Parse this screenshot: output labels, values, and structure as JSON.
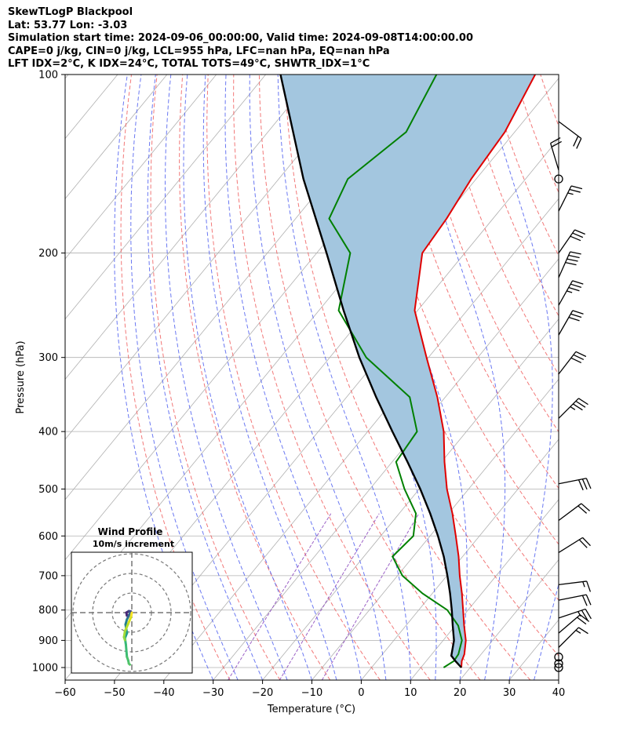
{
  "header": {
    "line1": "SkewTLogP Blackpool",
    "line2": "Lat: 53.77   Lon: -3.03",
    "line3": "Simulation start time: 2024-09-06_00:00:00, Valid time: 2024-09-08T14:00:00.00",
    "line4": "CAPE=0 j/kg, CIN=0 j/kg, LCL=955 hPa, LFC=nan hPa, EQ=nan hPa",
    "line5": "LFT IDX=2°C, K IDX=24°C, TOTAL TOTS=49°C, SHWTR_IDX=1°C"
  },
  "chart_data": {
    "type": "skew-t log-p",
    "xlabel": "Temperature (°C)",
    "ylabel": "Pressure (hPa)",
    "xlim": [
      -60,
      40
    ],
    "ylim": [
      1050,
      100
    ],
    "x_ticks": [
      "−60",
      "−50",
      "−40",
      "−30",
      "−20",
      "−10",
      "0",
      "10",
      "20",
      "30",
      "40"
    ],
    "y_ticks": [
      "100",
      "200",
      "300",
      "400",
      "500",
      "600",
      "700",
      "800",
      "900",
      "1000"
    ],
    "grid": true,
    "colors": {
      "temperature": "#e00000",
      "dewpoint": "#008000",
      "parcel": "#000000",
      "cape_fill": "#a3c6df",
      "dry_adiabats": "#f06060",
      "moist_adiabats": "#5060f0",
      "mixing_ratio": "#9050c0",
      "isotherms": "#b0b0b0"
    },
    "temperature_profile": [
      {
        "p": 1000,
        "t": 18.2
      },
      {
        "p": 975,
        "t": 17.2
      },
      {
        "p": 950,
        "t": 16.6
      },
      {
        "p": 900,
        "t": 14.6
      },
      {
        "p": 850,
        "t": 11.8
      },
      {
        "p": 800,
        "t": 9.0
      },
      {
        "p": 750,
        "t": 6.0
      },
      {
        "p": 700,
        "t": 2.6
      },
      {
        "p": 650,
        "t": -0.8
      },
      {
        "p": 600,
        "t": -4.8
      },
      {
        "p": 550,
        "t": -9.2
      },
      {
        "p": 500,
        "t": -14.4
      },
      {
        "p": 450,
        "t": -19.4
      },
      {
        "p": 400,
        "t": -24.6
      },
      {
        "p": 350,
        "t": -31.6
      },
      {
        "p": 300,
        "t": -40.4
      },
      {
        "p": 250,
        "t": -50.6
      },
      {
        "p": 200,
        "t": -58.6
      },
      {
        "p": 175,
        "t": -59.4
      },
      {
        "p": 150,
        "t": -61.0
      },
      {
        "p": 125,
        "t": -62.0
      },
      {
        "p": 100,
        "t": -65.4
      }
    ],
    "dewpoint_profile": [
      {
        "p": 1000,
        "t": 14.6
      },
      {
        "p": 975,
        "t": 15.6
      },
      {
        "p": 950,
        "t": 15.4
      },
      {
        "p": 900,
        "t": 13.8
      },
      {
        "p": 850,
        "t": 10.6
      },
      {
        "p": 800,
        "t": 5.8
      },
      {
        "p": 750,
        "t": -2.0
      },
      {
        "p": 700,
        "t": -9.0
      },
      {
        "p": 650,
        "t": -14.2
      },
      {
        "p": 600,
        "t": -13.4
      },
      {
        "p": 550,
        "t": -16.6
      },
      {
        "p": 500,
        "t": -23.0
      },
      {
        "p": 450,
        "t": -29.2
      },
      {
        "p": 400,
        "t": -30.0
      },
      {
        "p": 350,
        "t": -37.2
      },
      {
        "p": 300,
        "t": -52.6
      },
      {
        "p": 250,
        "t": -66.0
      },
      {
        "p": 200,
        "t": -73.2
      },
      {
        "p": 175,
        "t": -83.2
      },
      {
        "p": 150,
        "t": -86.0
      },
      {
        "p": 125,
        "t": -82.0
      },
      {
        "p": 100,
        "t": -85.4
      }
    ],
    "parcel_profile": [
      {
        "p": 1000,
        "t": 18.2
      },
      {
        "p": 975,
        "t": 15.9
      },
      {
        "p": 955,
        "t": 14.2
      },
      {
        "p": 900,
        "t": 12.2
      },
      {
        "p": 850,
        "t": 9.5
      },
      {
        "p": 800,
        "t": 6.7
      },
      {
        "p": 750,
        "t": 3.6
      },
      {
        "p": 700,
        "t": 0.1
      },
      {
        "p": 650,
        "t": -3.8
      },
      {
        "p": 600,
        "t": -8.4
      },
      {
        "p": 550,
        "t": -13.7
      },
      {
        "p": 500,
        "t": -19.8
      },
      {
        "p": 450,
        "t": -26.9
      },
      {
        "p": 400,
        "t": -35.0
      },
      {
        "p": 350,
        "t": -44.0
      },
      {
        "p": 300,
        "t": -54.0
      },
      {
        "p": 250,
        "t": -65.0
      },
      {
        "p": 200,
        "t": -78.0
      },
      {
        "p": 150,
        "t": -95.0
      },
      {
        "p": 100,
        "t": -117.0
      }
    ],
    "wind_barbs": [
      {
        "p": 1000,
        "u": 0,
        "v": 0
      },
      {
        "p": 985,
        "u": 0,
        "v": 0
      },
      {
        "p": 960,
        "u": 0,
        "v": 0
      },
      {
        "p": 925,
        "u": -6,
        "v": -6
      },
      {
        "p": 875,
        "u": -7,
        "v": -6
      },
      {
        "p": 825,
        "u": -12,
        "v": -4
      },
      {
        "p": 770,
        "u": -10,
        "v": -2
      },
      {
        "p": 725,
        "u": -8,
        "v": -1
      },
      {
        "p": 640,
        "u": -8,
        "v": -5
      },
      {
        "p": 565,
        "u": -8,
        "v": -6
      },
      {
        "p": 490,
        "u": -15,
        "v": -3
      },
      {
        "p": 380,
        "u": -12,
        "v": -12
      },
      {
        "p": 320,
        "u": -10,
        "v": -13
      },
      {
        "p": 275,
        "u": -8,
        "v": -14
      },
      {
        "p": 245,
        "u": -9,
        "v": -16
      },
      {
        "p": 220,
        "u": -8,
        "v": -18
      },
      {
        "p": 200,
        "u": -9,
        "v": -13
      },
      {
        "p": 170,
        "u": -6,
        "v": -12
      },
      {
        "p": 150,
        "u": 0,
        "v": 0
      },
      {
        "p": 145,
        "u": 3,
        "v": -10
      },
      {
        "p": 120,
        "u": -8,
        "v": 6
      }
    ],
    "hodograph": {
      "title": "Wind Profile",
      "subtitle": "10m/s increment",
      "rings": [
        10,
        20,
        30
      ],
      "points": [
        {
          "u": 0.0,
          "v": 0.0
        },
        {
          "u": -0.5,
          "v": -1.2
        },
        {
          "u": -2.5,
          "v": -1.5
        },
        {
          "u": -2.8,
          "v": 0.0
        },
        {
          "u": -1.5,
          "v": 0.8
        },
        {
          "u": -0.5,
          "v": 0.6
        },
        {
          "u": -1.0,
          "v": -0.5
        },
        {
          "u": -2.5,
          "v": -3.5
        },
        {
          "u": -3.2,
          "v": -6.0
        },
        {
          "u": -2.8,
          "v": -8.5
        },
        {
          "u": -2.5,
          "v": -10.5
        },
        {
          "u": -3.5,
          "v": -13.0
        },
        {
          "u": -3.0,
          "v": -16.5
        },
        {
          "u": -2.8,
          "v": -19.0
        },
        {
          "u": -2.5,
          "v": -22.5
        },
        {
          "u": -1.8,
          "v": -24.5
        },
        {
          "u": -1.5,
          "v": -26.0
        },
        {
          "u": -1.0,
          "v": -26.5
        }
      ],
      "light_segment": [
        {
          "u": 0.0,
          "v": 0.0
        },
        {
          "u": -0.5,
          "v": -2.5
        },
        {
          "u": -2.0,
          "v": -6.0
        },
        {
          "u": -3.5,
          "v": -9.5
        },
        {
          "u": -4.0,
          "v": -12.5
        },
        {
          "u": -3.5,
          "v": -14.0
        }
      ]
    }
  }
}
